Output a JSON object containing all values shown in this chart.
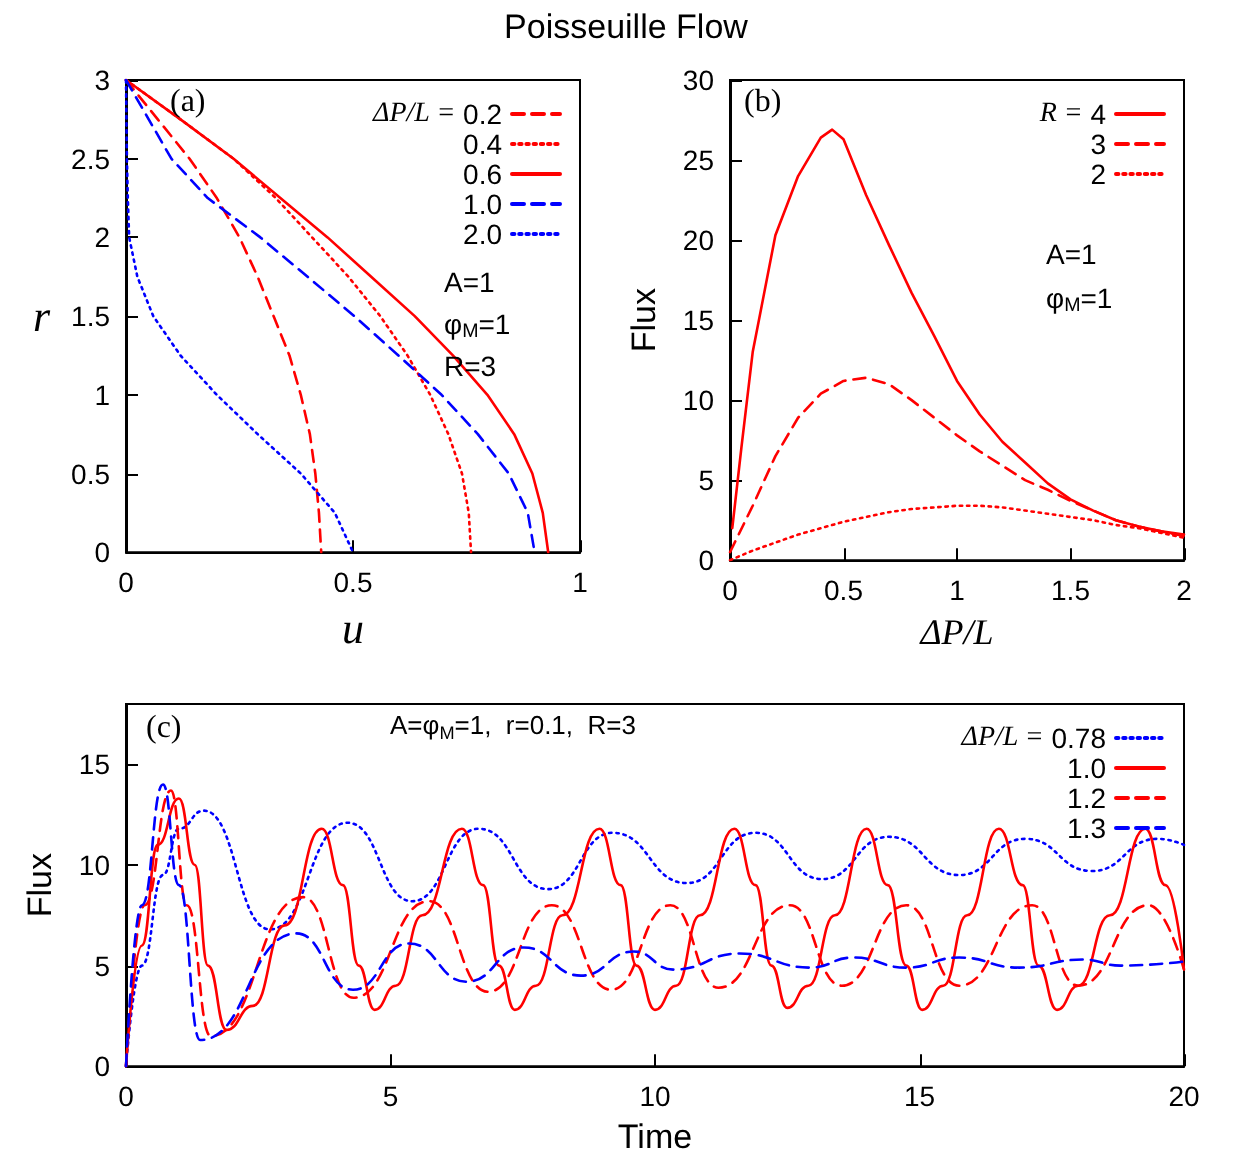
{
  "chart_data": [
    {
      "type": "line",
      "title": "Poisseuille Flow",
      "xlabel": "u",
      "ylabel": "r",
      "legend_title": "ΔP/L =",
      "legend": "top right",
      "marker": "none",
      "xlim": [
        0,
        1
      ],
      "xticks": [
        0,
        0.5,
        1
      ],
      "ylim": [
        0,
        3
      ],
      "yticks": [
        0,
        0.5,
        1,
        1.5,
        2,
        2.5,
        3
      ],
      "annotations": [
        "(a)",
        "A=1",
        "φ$_{M}$=1",
        "R=3"
      ],
      "series": [
        {
          "name": "0.2",
          "color": "#ff0000",
          "line_style": "dashed",
          "x": [
            0,
            0.07,
            0.14,
            0.2,
            0.25,
            0.29,
            0.325,
            0.36,
            0.385,
            0.405,
            0.417,
            0.425,
            0.43
          ],
          "values": [
            3,
            2.75,
            2.5,
            2.25,
            2,
            1.75,
            1.5,
            1.25,
            1,
            0.75,
            0.5,
            0.25,
            0
          ]
        },
        {
          "name": "0.4",
          "color": "#ff0000",
          "line_style": "dotted",
          "x": [
            0,
            0.12,
            0.237,
            0.33,
            0.41,
            0.49,
            0.56,
            0.62,
            0.67,
            0.71,
            0.74,
            0.755,
            0.76
          ],
          "values": [
            3,
            2.75,
            2.5,
            2.25,
            2,
            1.75,
            1.5,
            1.25,
            1,
            0.75,
            0.5,
            0.25,
            0
          ]
        },
        {
          "name": "0.6",
          "color": "#ff0000",
          "line_style": "solid",
          "x": [
            0,
            0.12,
            0.237,
            0.34,
            0.444,
            0.54,
            0.636,
            0.72,
            0.796,
            0.855,
            0.895,
            0.918,
            0.93
          ],
          "values": [
            3,
            2.75,
            2.5,
            2.25,
            2,
            1.75,
            1.5,
            1.25,
            1,
            0.75,
            0.5,
            0.25,
            0
          ]
        },
        {
          "name": "1.0",
          "color": "#0000ff",
          "line_style": "dashed",
          "x": [
            0,
            0.05,
            0.1,
            0.18,
            0.296,
            0.4,
            0.503,
            0.6,
            0.695,
            0.775,
            0.843,
            0.885,
            0.9
          ],
          "values": [
            3,
            2.75,
            2.5,
            2.25,
            2,
            1.75,
            1.5,
            1.25,
            1,
            0.75,
            0.5,
            0.25,
            0
          ]
        },
        {
          "name": "2.0",
          "color": "#0000ff",
          "line_style": "dotted",
          "x": [
            0,
            0.001,
            0.002,
            0.004,
            0.007,
            0.025,
            0.06,
            0.12,
            0.2,
            0.29,
            0.385,
            0.46,
            0.5
          ],
          "values": [
            3,
            2.75,
            2.5,
            2.25,
            2,
            1.75,
            1.5,
            1.25,
            1,
            0.75,
            0.5,
            0.25,
            0
          ]
        }
      ]
    },
    {
      "type": "line",
      "xlabel": "ΔP/L",
      "ylabel": "Flux",
      "legend_title": "R =",
      "legend": "top right",
      "marker": "none",
      "xlim": [
        0,
        2
      ],
      "xticks": [
        0,
        0.5,
        1,
        1.5,
        2
      ],
      "ylim": [
        0,
        30
      ],
      "yticks": [
        0,
        5,
        10,
        15,
        20,
        25,
        30
      ],
      "annotations": [
        "(b)",
        "A=1",
        "φ$_{M}$=1"
      ],
      "x": [
        0,
        0.1,
        0.2,
        0.3,
        0.4,
        0.5,
        0.6,
        0.7,
        0.8,
        0.9,
        1,
        1.1,
        1.2,
        1.3,
        1.4,
        1.5,
        1.6,
        1.7,
        1.8,
        1.9,
        2
      ],
      "series": [
        {
          "name": "4",
          "color": "#ff0000",
          "line_style": "solid",
          "x": [
            0.01,
            0.05,
            0.1,
            0.2,
            0.3,
            0.4,
            0.45,
            0.5,
            0.6,
            0.7,
            0.8,
            0.9,
            1,
            1.1,
            1.2,
            1.3,
            1.4,
            1.5,
            1.6,
            1.7,
            1.8,
            1.9,
            2
          ],
          "values": [
            2,
            7,
            13,
            20.3,
            24,
            26.4,
            26.9,
            26.3,
            22.8,
            19.7,
            16.7,
            14,
            11.2,
            9.1,
            7.4,
            6.1,
            4.8,
            3.8,
            3.1,
            2.5,
            2.1,
            1.8,
            1.6
          ]
        },
        {
          "name": "3",
          "color": "#ff0000",
          "line_style": "dashed",
          "values": [
            0.5,
            3.4,
            6.5,
            8.9,
            10.4,
            11.2,
            11.4,
            11,
            10,
            8.9,
            7.8,
            6.8,
            5.9,
            5,
            4.4,
            3.7,
            3.1,
            2.5,
            2.1,
            1.8,
            1.5
          ]
        },
        {
          "name": "2",
          "color": "#ff0000",
          "line_style": "dotted",
          "values": [
            0,
            0.6,
            1.1,
            1.6,
            2,
            2.4,
            2.7,
            3,
            3.2,
            3.3,
            3.4,
            3.4,
            3.3,
            3.1,
            2.9,
            2.7,
            2.5,
            2.2,
            2,
            1.7,
            1.4
          ]
        }
      ]
    },
    {
      "type": "line",
      "xlabel": "Time",
      "ylabel": "Flux",
      "legend_title": "ΔP/L =",
      "legend": "top right",
      "marker": "none",
      "xlim": [
        0,
        20
      ],
      "xticks": [
        0,
        5,
        10,
        15,
        20
      ],
      "ylim": [
        0,
        18
      ],
      "yticks": [
        0,
        5,
        10,
        15
      ],
      "annotations": [
        "(c)",
        "A=φ$_{M}$=1,  r=0.1,  R=3"
      ],
      "series": [
        {
          "name": "0.78",
          "color": "#0000ff",
          "line_style": "dotted",
          "x": [
            0,
            0.3,
            0.7,
            1,
            1.47,
            2.72,
            4.19,
            5.41,
            6.67,
            7.98,
            9.2,
            10.6,
            11.9,
            13.16,
            14.42,
            15.75,
            17,
            18.26,
            19.5,
            20
          ],
          "values": [
            0,
            5,
            9.5,
            11.8,
            12.7,
            6.8,
            12.1,
            8.2,
            11.8,
            8.8,
            11.6,
            9.1,
            11.6,
            9.3,
            11.4,
            9.5,
            11.3,
            9.7,
            11.3,
            11
          ]
        },
        {
          "name": "1.0",
          "color": "#ff0000",
          "line_style": "solid",
          "x": [
            0,
            0.3,
            0.6,
            1,
            1.3,
            1.55,
            1.9,
            2.4,
            3,
            3.7,
            4.1,
            4.4,
            4.7,
            5.1,
            5.6,
            6.35,
            6.75,
            7.05,
            7.35,
            7.75,
            8.25,
            8.95,
            9.35,
            9.65,
            10,
            10.4,
            10.85,
            11.5,
            11.9,
            12.2,
            12.5,
            12.9,
            13.4,
            14,
            14.4,
            14.75,
            15.05,
            15.45,
            15.9,
            16.5,
            16.95,
            17.25,
            17.6,
            18,
            18.6,
            19.27,
            19.65,
            20
          ],
          "values": [
            0,
            6,
            11,
            13.3,
            10,
            5,
            1.8,
            3,
            7,
            11.8,
            9,
            5,
            2.8,
            4,
            7.5,
            11.8,
            9,
            5,
            2.8,
            4,
            7.5,
            11.8,
            9,
            5,
            2.8,
            4,
            7.5,
            11.8,
            9,
            5,
            2.9,
            4,
            7.5,
            11.8,
            9,
            5,
            2.8,
            4,
            7.5,
            11.8,
            9,
            5,
            2.8,
            4,
            7.5,
            11.8,
            9,
            4.8
          ]
        },
        {
          "name": "1.2",
          "color": "#ff0000",
          "line_style": "dashed",
          "x": [
            0,
            0.35,
            0.85,
            1.15,
            1.6,
            3.35,
            4.3,
            5.73,
            6.85,
            8.05,
            9.17,
            10.29,
            11.2,
            12.55,
            13.53,
            14.75,
            15.75,
            17.13,
            18,
            19.33,
            20
          ],
          "values": [
            0,
            8,
            13.7,
            8,
            1.5,
            8.4,
            3.4,
            8.2,
            3.7,
            8,
            3.8,
            8,
            3.9,
            8,
            4,
            8,
            4,
            8,
            4,
            8,
            4.8
          ]
        },
        {
          "name": "1.3",
          "color": "#0000ff",
          "line_style": "dashed",
          "x": [
            0,
            0.3,
            0.7,
            1,
            1.4,
            3.22,
            4.29,
            5.35,
            6.44,
            7.52,
            8.6,
            9.6,
            10.35,
            11.6,
            12.93,
            13.75,
            14.75,
            15.75,
            16.88,
            18.1,
            18.8,
            20
          ],
          "values": [
            0,
            8,
            14,
            9,
            1.3,
            6.6,
            3.8,
            6.1,
            4.2,
            5.9,
            4.5,
            5.7,
            4.8,
            5.6,
            4.9,
            5.4,
            4.9,
            5.4,
            4.9,
            5.3,
            5,
            5.2
          ]
        }
      ]
    }
  ]
}
